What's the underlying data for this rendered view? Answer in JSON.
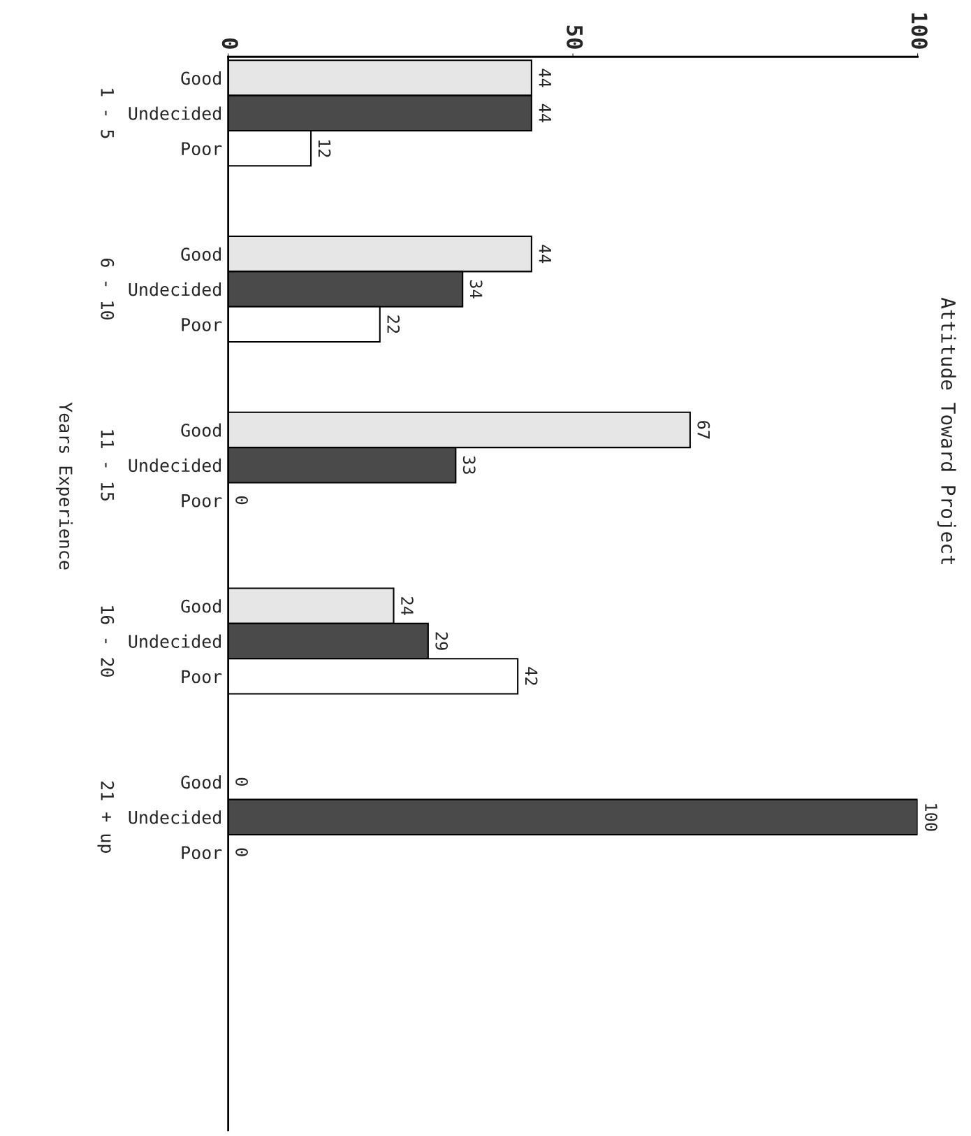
{
  "chart_data": {
    "type": "bar",
    "orientation": "horizontal",
    "title": "Attitude Toward Project",
    "ylabel": "Years Experience",
    "categories": [
      "1 - 5",
      "6 - 10",
      "11 - 15",
      "16 - 20",
      "21 + up"
    ],
    "series": [
      {
        "name": "Good",
        "color": "#e6e6e6",
        "values": [
          44,
          44,
          67,
          24,
          0
        ]
      },
      {
        "name": "Undecided",
        "color": "#4a4a4a",
        "values": [
          44,
          34,
          33,
          29,
          100
        ]
      },
      {
        "name": "Poor",
        "color": "#ffffff",
        "values": [
          12,
          22,
          0,
          42,
          0
        ]
      }
    ],
    "xlim": [
      0,
      100
    ],
    "xticks": [
      0,
      50,
      100
    ],
    "data_labels": true,
    "grid": false,
    "legend": false
  }
}
